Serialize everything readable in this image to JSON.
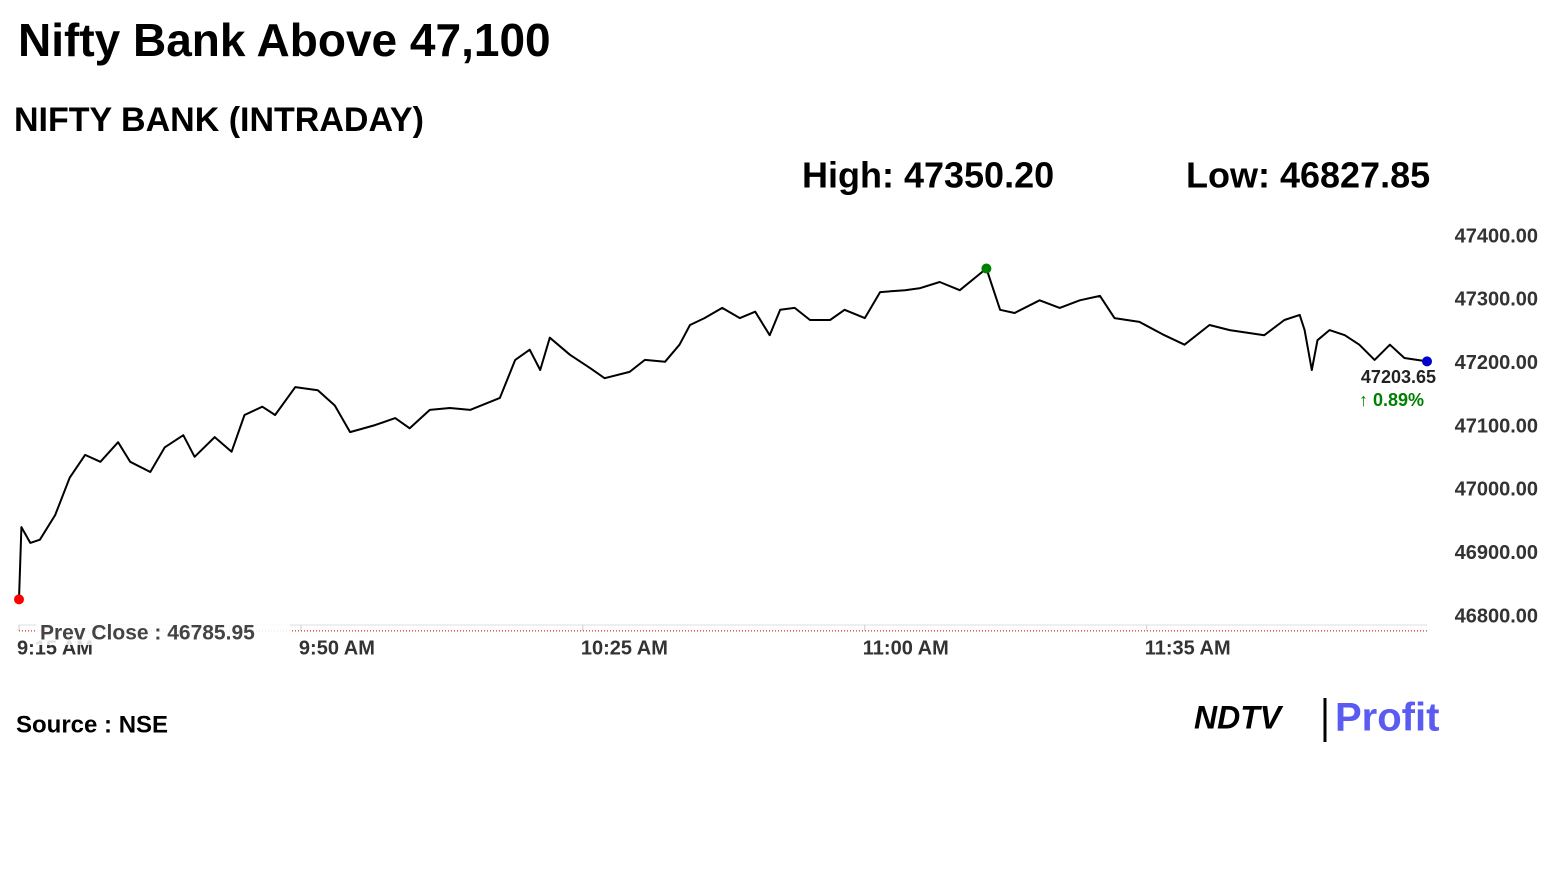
{
  "chart_data": {
    "type": "line",
    "title": "Nifty Bank Above 47,100",
    "subtitle": "NIFTY BANK (INTRADAY)",
    "high_label": "High: 47350.20",
    "low_label": "Low: 46827.85",
    "change_label": "↑ 0.89%",
    "source": "Source : NSE",
    "brand": [
      "NDTV",
      "Profit"
    ],
    "prev_close": {
      "label": "Prev Close : 46785.95",
      "value": 46785.95,
      "color": "#cc0000"
    },
    "x": [
      0,
      0.3,
      1.4,
      2.6,
      4.5,
      6.3,
      8.2,
      10.1,
      12.3,
      13.8,
      16.3,
      18.1,
      20.4,
      21.8,
      24.3,
      26.4,
      28.0,
      30.2,
      31.8,
      34.3,
      37.1,
      39.2,
      41.1,
      44.2,
      46.7,
      48.5,
      51.0,
      53.5,
      56.0,
      59.7,
      61.6,
      63.4,
      64.7,
      65.9,
      68.4,
      70.9,
      72.7,
      75.8,
      77.7,
      80.2,
      82.0,
      83.3,
      85.1,
      87.3,
      89.5,
      91.4,
      93.2,
      94.5,
      96.3,
      98.2,
      100.7,
      102.5,
      105.0,
      106.9,
      110.0,
      111.8,
      114.3,
      116.8,
      120.1,
      121.8,
      123.6,
      126.7,
      129.2,
      131.7,
      134.2,
      136.0,
      139.1,
      142.2,
      144.7,
      147.8,
      150.3,
      154.6,
      157.1,
      159.0,
      159.6,
      160.5,
      161.2,
      162.7,
      164.6,
      166.4,
      168.3,
      170.2,
      172.0,
      174.8
    ],
    "series": [
      {
        "name": "NIFTY BANK",
        "color": "#000000",
        "values": [
          46827.85,
          46942,
          46917,
          46922,
          46961,
          47020,
          47056,
          47045,
          47076,
          47045,
          47029,
          47068,
          47087,
          47053,
          47084,
          47061,
          47119,
          47132,
          47119,
          47163,
          47158,
          47134,
          47092,
          47103,
          47114,
          47098,
          47127,
          47130,
          47127,
          47146,
          47206,
          47222,
          47190,
          47241,
          47214,
          47193,
          47177,
          47187,
          47206,
          47203,
          47230,
          47261,
          47272,
          47288,
          47272,
          47282,
          47245,
          47285,
          47288,
          47269,
          47269,
          47285,
          47272,
          47313,
          47316,
          47319,
          47329,
          47316,
          47350.2,
          47285,
          47280,
          47300,
          47288,
          47300,
          47307,
          47272,
          47266,
          47245,
          47230,
          47261,
          47253,
          47245,
          47269,
          47277,
          47253,
          47190,
          47237,
          47253,
          47245,
          47230,
          47206,
          47230,
          47209,
          47203.65
        ]
      }
    ],
    "markers": {
      "start_color": "#ff0000",
      "high_color": "#008000",
      "end_color": "#0000cc",
      "change_color": "#008000"
    },
    "xlim": [
      0,
      174.8
    ],
    "xticks": [
      {
        "value": 0,
        "label": "9:15 AM"
      },
      {
        "value": 35,
        "label": "9:50 AM"
      },
      {
        "value": 70,
        "label": "10:25 AM"
      },
      {
        "value": 105,
        "label": "11:00 AM"
      },
      {
        "value": 140,
        "label": "11:35 AM"
      }
    ],
    "ylim": [
      46800,
      47400
    ],
    "yticks": [
      {
        "value": 46800,
        "label": "46800.00"
      },
      {
        "value": 46900,
        "label": "46900.00"
      },
      {
        "value": 47000,
        "label": "47000.00"
      },
      {
        "value": 47100,
        "label": "47100.00"
      },
      {
        "value": 47200,
        "label": "47200.00"
      },
      {
        "value": 47300,
        "label": "47300.00"
      },
      {
        "value": 47400,
        "label": "47400.00"
      }
    ]
  }
}
